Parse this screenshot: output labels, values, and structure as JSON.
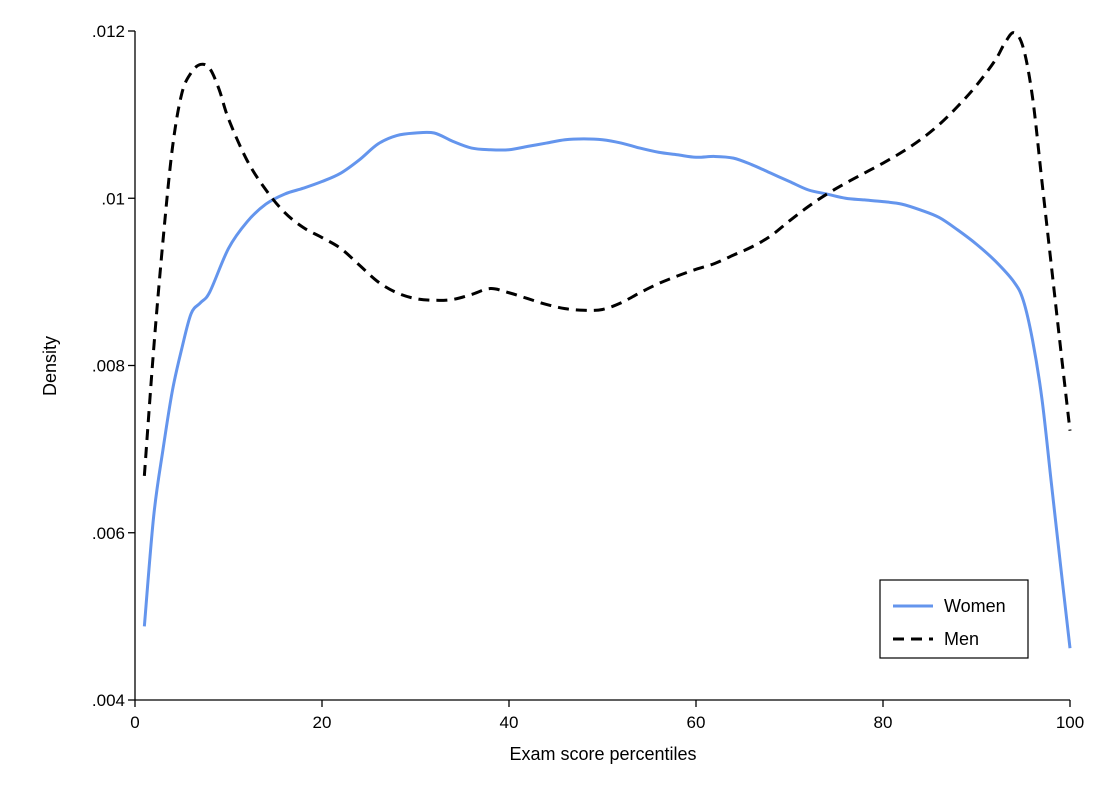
{
  "chart_data": {
    "type": "line",
    "title": "",
    "xlabel": "Exam score percentiles",
    "ylabel": "Density",
    "xlim": [
      0,
      100
    ],
    "ylim": [
      0.004,
      0.012
    ],
    "x_ticks": [
      0,
      20,
      40,
      60,
      80,
      100
    ],
    "x_tick_labels": [
      "0",
      "20",
      "40",
      "60",
      "80",
      "100"
    ],
    "y_ticks": [
      0.004,
      0.006,
      0.008,
      0.01,
      0.012
    ],
    "y_tick_labels": [
      ".004",
      ".006",
      ".008",
      ".01",
      ".012"
    ],
    "grid": false,
    "legend_position": "bottom-right",
    "series": [
      {
        "name": "Women",
        "color": "#6495ED",
        "style": "solid",
        "x": [
          1,
          2,
          3,
          4,
          5,
          6,
          7,
          8,
          10,
          12,
          14,
          16,
          18,
          20,
          22,
          24,
          26,
          28,
          30,
          32,
          34,
          36,
          38,
          40,
          42,
          44,
          46,
          48,
          50,
          52,
          54,
          56,
          58,
          60,
          62,
          64,
          66,
          68,
          70,
          72,
          74,
          76,
          78,
          80,
          82,
          84,
          86,
          88,
          90,
          92,
          94,
          95,
          96,
          97,
          98,
          99,
          100
        ],
        "values": [
          0.00488,
          0.0062,
          0.007,
          0.0077,
          0.0082,
          0.00862,
          0.00875,
          0.00888,
          0.0094,
          0.00972,
          0.00993,
          0.01005,
          0.01012,
          0.0102,
          0.0103,
          0.01046,
          0.01065,
          0.01075,
          0.01078,
          0.01078,
          0.01068,
          0.0106,
          0.01058,
          0.01058,
          0.01062,
          0.01066,
          0.0107,
          0.01071,
          0.0107,
          0.01066,
          0.0106,
          0.01055,
          0.01052,
          0.01049,
          0.0105,
          0.01048,
          0.0104,
          0.0103,
          0.0102,
          0.0101,
          0.01005,
          0.01,
          0.00998,
          0.00996,
          0.00993,
          0.00986,
          0.00977,
          0.00962,
          0.00945,
          0.00925,
          0.009,
          0.00878,
          0.0083,
          0.0076,
          0.0066,
          0.0056,
          0.00462
        ]
      },
      {
        "name": "Men",
        "color": "#000000",
        "style": "dashed",
        "x": [
          1,
          2,
          3,
          4,
          5,
          6,
          7,
          8,
          9,
          10,
          12,
          14,
          16,
          18,
          20,
          22,
          24,
          26,
          28,
          30,
          32,
          34,
          36,
          38,
          40,
          42,
          44,
          46,
          48,
          50,
          52,
          54,
          56,
          58,
          60,
          62,
          64,
          66,
          68,
          70,
          72,
          74,
          76,
          78,
          80,
          82,
          84,
          86,
          88,
          90,
          92,
          93,
          94,
          95,
          96,
          97,
          98,
          99,
          100
        ],
        "values": [
          0.00668,
          0.0082,
          0.0095,
          0.0106,
          0.01125,
          0.0115,
          0.0116,
          0.01155,
          0.0113,
          0.01095,
          0.01045,
          0.0101,
          0.00983,
          0.00965,
          0.00953,
          0.0094,
          0.0092,
          0.009,
          0.00887,
          0.0088,
          0.00878,
          0.00879,
          0.00885,
          0.00892,
          0.00887,
          0.0088,
          0.00873,
          0.00868,
          0.00866,
          0.00867,
          0.00875,
          0.00887,
          0.00898,
          0.00907,
          0.00915,
          0.00922,
          0.00932,
          0.00942,
          0.00955,
          0.00973,
          0.0099,
          0.01005,
          0.01018,
          0.0103,
          0.01042,
          0.01055,
          0.0107,
          0.01088,
          0.0111,
          0.01135,
          0.01165,
          0.01185,
          0.01198,
          0.0118,
          0.0112,
          0.0102,
          0.0092,
          0.0082,
          0.00722
        ]
      }
    ]
  }
}
